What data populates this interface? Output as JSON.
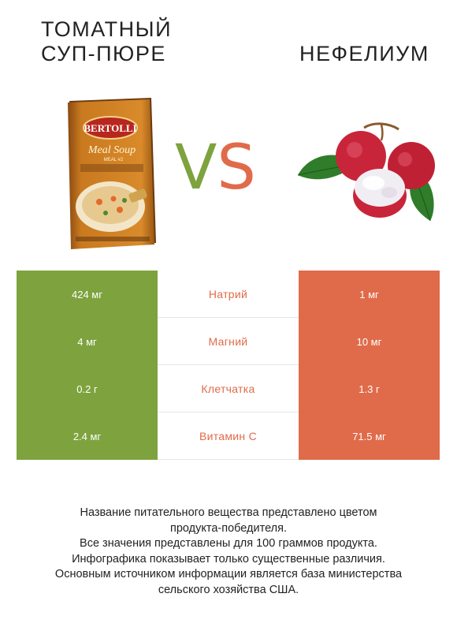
{
  "header": {
    "left_title_line1": "ТОМАТНЫЙ",
    "left_title_line2": "СУП-ПЮРЕ",
    "right_title": "НЕФЕЛИУМ",
    "vs_v": "V",
    "vs_s": "S"
  },
  "package": {
    "brand": "BERTOLLI",
    "line1": "Meal Soup",
    "line2": "MEAL #2"
  },
  "colors": {
    "winner_left": "#7ea33e",
    "winner_right": "#e06b4a"
  },
  "rows": [
    {
      "left": "424 мг",
      "nutrient": "Натрий",
      "right": "1 мг"
    },
    {
      "left": "4 мг",
      "nutrient": "Магний",
      "right": "10 мг"
    },
    {
      "left": "0.2 г",
      "nutrient": "Клетчатка",
      "right": "1.3 г"
    },
    {
      "left": "2.4 мг",
      "nutrient": "Витамин C",
      "right": "71.5 мг"
    }
  ],
  "footer": {
    "line1": "Название питательного вещества представлено цветом",
    "line2": "продукта-победителя.",
    "line3": "Все значения представлены для 100 граммов продукта.",
    "line4": "Инфографика показывает только существенные различия.",
    "line5": "Основным источником информации является база министерства",
    "line6": "сельского хозяйства США."
  }
}
